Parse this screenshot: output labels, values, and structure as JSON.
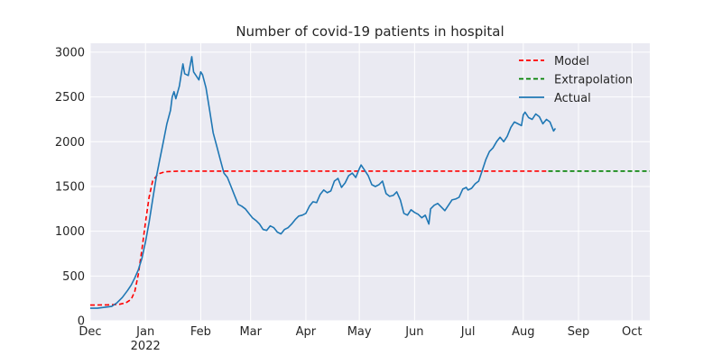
{
  "chart_data": {
    "type": "line",
    "title": "Number of covid-19 patients in hospital",
    "xlabel": "",
    "ylabel": "",
    "xlim": [
      "2021-12-01",
      "2022-10-11"
    ],
    "ylim": [
      0,
      3100
    ],
    "grid": true,
    "legend_position": "top-right",
    "x_ticks": [
      {
        "date": "2021-12-01",
        "label": "Dec",
        "sublabel": ""
      },
      {
        "date": "2022-01-01",
        "label": "Jan",
        "sublabel": "2022"
      },
      {
        "date": "2022-02-01",
        "label": "Feb",
        "sublabel": ""
      },
      {
        "date": "2022-03-01",
        "label": "Mar",
        "sublabel": ""
      },
      {
        "date": "2022-04-01",
        "label": "Apr",
        "sublabel": ""
      },
      {
        "date": "2022-05-01",
        "label": "May",
        "sublabel": ""
      },
      {
        "date": "2022-06-01",
        "label": "Jun",
        "sublabel": ""
      },
      {
        "date": "2022-07-01",
        "label": "Jul",
        "sublabel": ""
      },
      {
        "date": "2022-08-01",
        "label": "Aug",
        "sublabel": ""
      },
      {
        "date": "2022-09-01",
        "label": "Sep",
        "sublabel": ""
      },
      {
        "date": "2022-10-01",
        "label": "Oct",
        "sublabel": ""
      }
    ],
    "y_ticks": [
      0,
      500,
      1000,
      1500,
      2000,
      2500,
      3000
    ],
    "series": [
      {
        "name": "Model",
        "style": "dashed",
        "color": "#ff0000",
        "points": [
          [
            "2021-12-01",
            175
          ],
          [
            "2021-12-10",
            177
          ],
          [
            "2021-12-17",
            182
          ],
          [
            "2021-12-21",
            200
          ],
          [
            "2021-12-24",
            240
          ],
          [
            "2021-12-26",
            330
          ],
          [
            "2021-12-28",
            520
          ],
          [
            "2021-12-30",
            800
          ],
          [
            "2022-01-01",
            1100
          ],
          [
            "2022-01-03",
            1380
          ],
          [
            "2022-01-05",
            1560
          ],
          [
            "2022-01-08",
            1640
          ],
          [
            "2022-01-12",
            1665
          ],
          [
            "2022-01-20",
            1672
          ],
          [
            "2022-02-15",
            1672
          ],
          [
            "2022-08-15",
            1672
          ]
        ]
      },
      {
        "name": "Extrapolation",
        "style": "dashed",
        "color": "#008000",
        "points": [
          [
            "2022-08-15",
            1672
          ],
          [
            "2022-10-11",
            1672
          ]
        ]
      },
      {
        "name": "Actual",
        "style": "solid",
        "color": "#1f77b4",
        "points": [
          [
            "2021-12-01",
            140
          ],
          [
            "2021-12-05",
            140
          ],
          [
            "2021-12-09",
            150
          ],
          [
            "2021-12-13",
            160
          ],
          [
            "2021-12-16",
            200
          ],
          [
            "2021-12-19",
            260
          ],
          [
            "2021-12-22",
            340
          ],
          [
            "2021-12-24",
            400
          ],
          [
            "2021-12-26",
            480
          ],
          [
            "2021-12-28",
            570
          ],
          [
            "2021-12-30",
            700
          ],
          [
            "2022-01-01",
            880
          ],
          [
            "2022-01-03",
            1100
          ],
          [
            "2022-01-05",
            1350
          ],
          [
            "2022-01-07",
            1600
          ],
          [
            "2022-01-09",
            1800
          ],
          [
            "2022-01-11",
            2000
          ],
          [
            "2022-01-13",
            2200
          ],
          [
            "2022-01-15",
            2350
          ],
          [
            "2022-01-16",
            2500
          ],
          [
            "2022-01-17",
            2560
          ],
          [
            "2022-01-18",
            2480
          ],
          [
            "2022-01-20",
            2620
          ],
          [
            "2022-01-22",
            2870
          ],
          [
            "2022-01-23",
            2760
          ],
          [
            "2022-01-25",
            2740
          ],
          [
            "2022-01-27",
            2950
          ],
          [
            "2022-01-28",
            2780
          ],
          [
            "2022-01-30",
            2720
          ],
          [
            "2022-01-31",
            2690
          ],
          [
            "2022-02-01",
            2780
          ],
          [
            "2022-02-02",
            2750
          ],
          [
            "2022-02-04",
            2600
          ],
          [
            "2022-02-06",
            2350
          ],
          [
            "2022-02-08",
            2100
          ],
          [
            "2022-02-10",
            1950
          ],
          [
            "2022-02-12",
            1800
          ],
          [
            "2022-02-14",
            1650
          ],
          [
            "2022-02-16",
            1600
          ],
          [
            "2022-02-18",
            1500
          ],
          [
            "2022-02-20",
            1400
          ],
          [
            "2022-02-22",
            1300
          ],
          [
            "2022-02-24",
            1280
          ],
          [
            "2022-02-26",
            1250
          ],
          [
            "2022-02-28",
            1200
          ],
          [
            "2022-03-02",
            1150
          ],
          [
            "2022-03-04",
            1120
          ],
          [
            "2022-03-06",
            1080
          ],
          [
            "2022-03-08",
            1020
          ],
          [
            "2022-03-10",
            1010
          ],
          [
            "2022-03-12",
            1060
          ],
          [
            "2022-03-14",
            1040
          ],
          [
            "2022-03-16",
            990
          ],
          [
            "2022-03-18",
            970
          ],
          [
            "2022-03-20",
            1020
          ],
          [
            "2022-03-22",
            1040
          ],
          [
            "2022-03-24",
            1080
          ],
          [
            "2022-03-26",
            1130
          ],
          [
            "2022-03-28",
            1170
          ],
          [
            "2022-03-30",
            1180
          ],
          [
            "2022-04-01",
            1200
          ],
          [
            "2022-04-03",
            1280
          ],
          [
            "2022-04-05",
            1330
          ],
          [
            "2022-04-07",
            1320
          ],
          [
            "2022-04-09",
            1410
          ],
          [
            "2022-04-11",
            1460
          ],
          [
            "2022-04-13",
            1430
          ],
          [
            "2022-04-15",
            1450
          ],
          [
            "2022-04-17",
            1560
          ],
          [
            "2022-04-19",
            1590
          ],
          [
            "2022-04-21",
            1490
          ],
          [
            "2022-04-23",
            1540
          ],
          [
            "2022-04-25",
            1620
          ],
          [
            "2022-04-27",
            1650
          ],
          [
            "2022-04-29",
            1600
          ],
          [
            "2022-05-01",
            1700
          ],
          [
            "2022-05-02",
            1740
          ],
          [
            "2022-05-04",
            1680
          ],
          [
            "2022-05-06",
            1620
          ],
          [
            "2022-05-08",
            1520
          ],
          [
            "2022-05-10",
            1500
          ],
          [
            "2022-05-12",
            1520
          ],
          [
            "2022-05-14",
            1560
          ],
          [
            "2022-05-16",
            1420
          ],
          [
            "2022-05-18",
            1390
          ],
          [
            "2022-05-20",
            1400
          ],
          [
            "2022-05-22",
            1440
          ],
          [
            "2022-05-24",
            1350
          ],
          [
            "2022-05-26",
            1200
          ],
          [
            "2022-05-28",
            1180
          ],
          [
            "2022-05-30",
            1240
          ],
          [
            "2022-06-01",
            1210
          ],
          [
            "2022-06-03",
            1190
          ],
          [
            "2022-06-05",
            1150
          ],
          [
            "2022-06-07",
            1180
          ],
          [
            "2022-06-09",
            1080
          ],
          [
            "2022-06-10",
            1250
          ],
          [
            "2022-06-12",
            1290
          ],
          [
            "2022-06-14",
            1310
          ],
          [
            "2022-06-16",
            1270
          ],
          [
            "2022-06-18",
            1230
          ],
          [
            "2022-06-20",
            1290
          ],
          [
            "2022-06-22",
            1350
          ],
          [
            "2022-06-24",
            1360
          ],
          [
            "2022-06-26",
            1380
          ],
          [
            "2022-06-28",
            1470
          ],
          [
            "2022-06-30",
            1490
          ],
          [
            "2022-07-01",
            1460
          ],
          [
            "2022-07-03",
            1480
          ],
          [
            "2022-07-05",
            1530
          ],
          [
            "2022-07-07",
            1560
          ],
          [
            "2022-07-09",
            1680
          ],
          [
            "2022-07-11",
            1800
          ],
          [
            "2022-07-13",
            1890
          ],
          [
            "2022-07-15",
            1930
          ],
          [
            "2022-07-17",
            2000
          ],
          [
            "2022-07-19",
            2050
          ],
          [
            "2022-07-21",
            2000
          ],
          [
            "2022-07-23",
            2060
          ],
          [
            "2022-07-25",
            2160
          ],
          [
            "2022-07-27",
            2220
          ],
          [
            "2022-07-29",
            2200
          ],
          [
            "2022-07-31",
            2180
          ],
          [
            "2022-08-01",
            2300
          ],
          [
            "2022-08-02",
            2330
          ],
          [
            "2022-08-04",
            2270
          ],
          [
            "2022-08-06",
            2250
          ],
          [
            "2022-08-08",
            2310
          ],
          [
            "2022-08-10",
            2280
          ],
          [
            "2022-08-12",
            2200
          ],
          [
            "2022-08-14",
            2250
          ],
          [
            "2022-08-16",
            2220
          ],
          [
            "2022-08-18",
            2120
          ],
          [
            "2022-08-19",
            2150
          ]
        ]
      }
    ]
  }
}
